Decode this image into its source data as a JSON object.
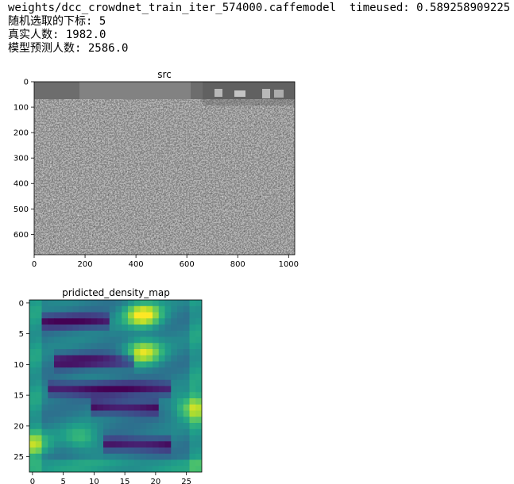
{
  "output": {
    "line1_prefix": "weights/dcc_crowdnet_train_iter_574000.caffemodel",
    "timeused_label": "timeused:",
    "timeused_value": "0.589258909225",
    "line2": "随机选取的下标: 5",
    "line3": "真实人数: 1982.0",
    "line4": "模型预测人数: 2586.0"
  },
  "chart_data": [
    {
      "type": "image",
      "title": "src",
      "colormap": "gray",
      "xlim": [
        0,
        1024
      ],
      "ylim": [
        680,
        0
      ],
      "xticks": [
        0,
        200,
        400,
        600,
        800,
        1000
      ],
      "yticks": [
        0,
        100,
        200,
        300,
        400,
        500,
        600
      ]
    },
    {
      "type": "heatmap",
      "title": "pridicted_density_map",
      "colormap": "viridis",
      "xlim": [
        -0.5,
        27.5
      ],
      "ylim": [
        27.5,
        -0.5
      ],
      "xticks": [
        0,
        5,
        10,
        15,
        20,
        25
      ],
      "yticks": [
        0,
        5,
        10,
        15,
        20,
        25
      ],
      "grid_size": [
        28,
        28
      ],
      "hotspots": [
        {
          "row": 2,
          "col": 18,
          "value": 1.0
        },
        {
          "row": 8,
          "col": 18,
          "value": 0.85
        },
        {
          "row": 17,
          "col": 26,
          "value": 0.7
        },
        {
          "row": 23,
          "col": 0,
          "value": 0.55
        },
        {
          "row": 22,
          "col": 8,
          "value": 0.45
        }
      ],
      "lowbands": [
        {
          "row": 3,
          "col_start": 2,
          "col_end": 12
        },
        {
          "row": 9.5,
          "col_start": 4,
          "col_end": 16
        },
        {
          "row": 14,
          "col_start": 3,
          "col_end": 22
        },
        {
          "row": 17,
          "col_start": 10,
          "col_end": 20
        },
        {
          "row": 23,
          "col_start": 12,
          "col_end": 22
        }
      ]
    }
  ]
}
